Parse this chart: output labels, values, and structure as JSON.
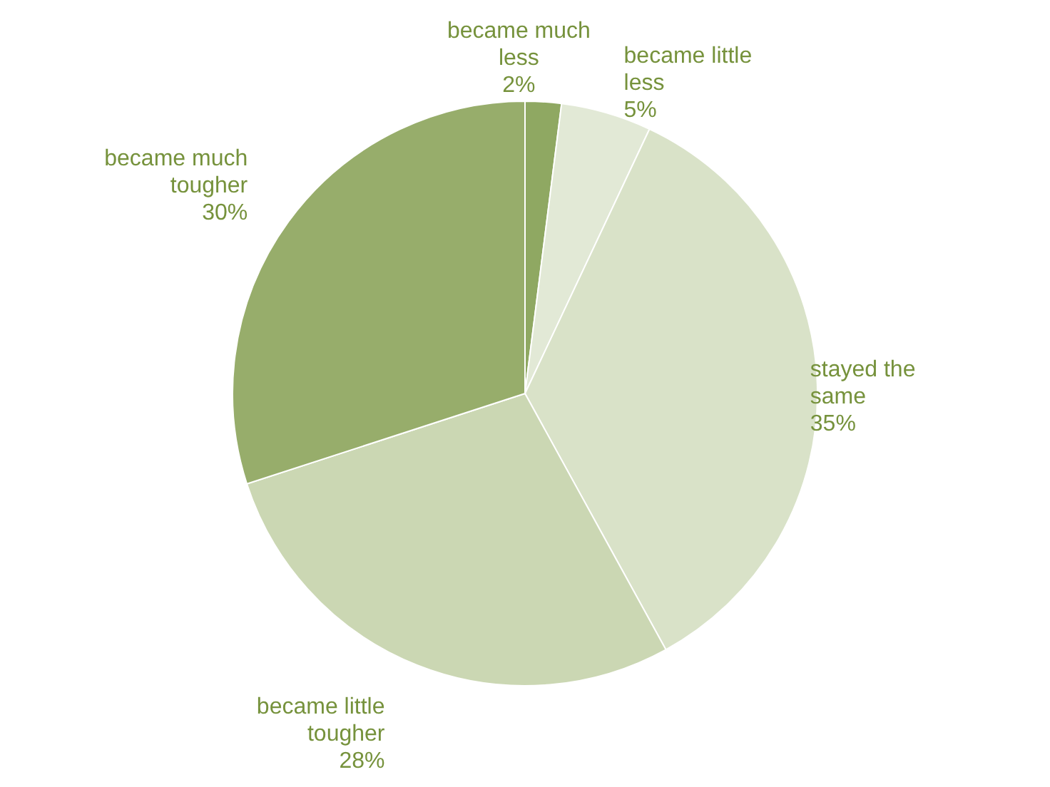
{
  "chart_data": {
    "type": "pie",
    "categories": [
      "became much less",
      "became little less",
      "stayed the same",
      "became little tougher",
      "became much tougher"
    ],
    "values": [
      2,
      5,
      35,
      28,
      30
    ],
    "value_labels": [
      "2%",
      "5%",
      "35%",
      "28%",
      "30%"
    ],
    "colors": [
      "#8fa862",
      "#e2e9d6",
      "#d9e2c8",
      "#cbd7b3",
      "#97ad6b"
    ]
  }
}
